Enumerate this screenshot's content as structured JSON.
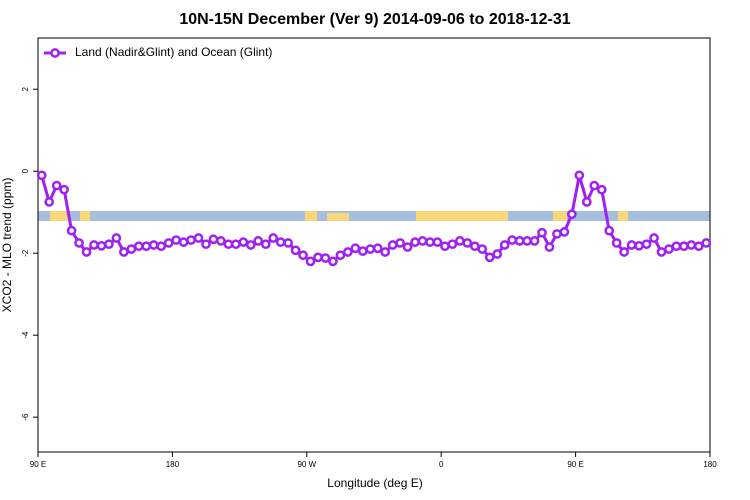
{
  "chart_data": {
    "type": "line",
    "title": "10N-15N December (Ver 9)   2014-09-06 to 2018-12-31",
    "xlabel": "Longitude (deg E)",
    "ylabel": "XCO2 - MLO trend (ppm)",
    "xlim": [
      90,
      540
    ],
    "ylim": [
      -6.85,
      3.25
    ],
    "xticks": [
      {
        "value": 90,
        "label": "90 E"
      },
      180,
      {
        "value": 270,
        "label": "90 W"
      },
      {
        "value": 360,
        "label": "0"
      },
      {
        "value": 450,
        "label": "90 E"
      },
      {
        "value": 540,
        "label": "180"
      }
    ],
    "yticks": [
      2,
      0,
      -2,
      -4,
      -6
    ],
    "legend": "top-left",
    "x": [
      92.5,
      97.5,
      102.5,
      107.5,
      112.5,
      117.5,
      122.5,
      127.5,
      132.5,
      137.5,
      142.5,
      147.5,
      152.5,
      157.5,
      162.5,
      167.5,
      172.5,
      177.5,
      182.5,
      187.5,
      192.5,
      197.5,
      202.5,
      207.5,
      212.5,
      217.5,
      222.5,
      227.5,
      232.5,
      237.5,
      242.5,
      247.5,
      252.5,
      257.5,
      262.5,
      267.5,
      272.5,
      277.5,
      282.5,
      287.5,
      292.5,
      297.5,
      302.5,
      307.5,
      312.5,
      317.5,
      322.5,
      327.5,
      332.5,
      337.5,
      342.5,
      347.5,
      352.5,
      357.5,
      362.5,
      367.5,
      372.5,
      377.5,
      382.5,
      387.5,
      392.5,
      397.5,
      402.5,
      407.5,
      412.5,
      417.5,
      422.5,
      427.5,
      432.5,
      437.5,
      442.5,
      447.5,
      452.5,
      457.5,
      462.5,
      467.5,
      472.5,
      477.5,
      482.5,
      487.5,
      492.5,
      497.5,
      502.5,
      507.5,
      512.5,
      517.5,
      522.5,
      527.5,
      532.5,
      537.5
    ],
    "series": [
      {
        "name": "Land (Nadir&Glint) and Ocean (Glint)",
        "color": "#a020f0",
        "values": [
          -0.1,
          -0.75,
          -0.35,
          -0.45,
          -1.45,
          -1.75,
          -1.97,
          -1.8,
          -1.82,
          -1.78,
          -1.63,
          -1.97,
          -1.9,
          -1.83,
          -1.83,
          -1.8,
          -1.83,
          -1.75,
          -1.68,
          -1.73,
          -1.68,
          -1.63,
          -1.78,
          -1.66,
          -1.7,
          -1.78,
          -1.78,
          -1.73,
          -1.8,
          -1.7,
          -1.78,
          -1.63,
          -1.73,
          -1.75,
          -1.93,
          -2.05,
          -2.2,
          -2.1,
          -2.12,
          -2.2,
          -2.05,
          -1.97,
          -1.88,
          -1.95,
          -1.9,
          -1.88,
          -1.97,
          -1.8,
          -1.75,
          -1.85,
          -1.73,
          -1.7,
          -1.73,
          -1.73,
          -1.83,
          -1.78,
          -1.7,
          -1.75,
          -1.83,
          -1.9,
          -2.1,
          -2.02,
          -1.8,
          -1.68,
          -1.7,
          -1.7,
          -1.7,
          -1.5,
          -1.85,
          -1.53,
          -1.48,
          -1.05,
          -0.1,
          -0.75,
          -0.35,
          -0.45,
          -1.45,
          -1.75,
          -1.97,
          -1.8,
          -1.82,
          -1.78,
          -1.63,
          -1.97,
          -1.9,
          -1.83,
          -1.83,
          -1.8,
          -1.83,
          -1.75
        ]
      }
    ]
  }
}
